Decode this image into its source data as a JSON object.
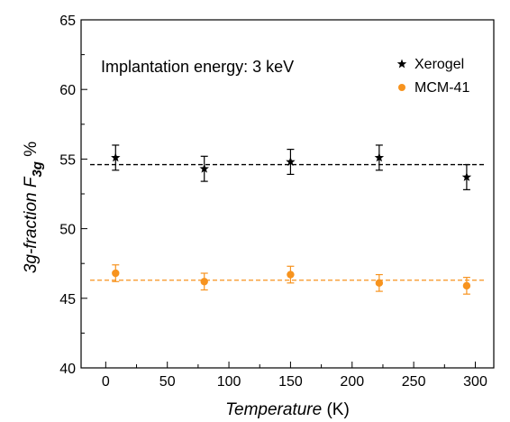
{
  "chart_data": {
    "type": "scatter",
    "title": "",
    "annotation": "Implantation energy: 3 keV",
    "xlabel": {
      "italic": "Temperature",
      "plain": " (K)"
    },
    "ylabel": {
      "prefix": "3g-fraction ",
      "symbol": "F",
      "subscript": "3g",
      "suffix": " %"
    },
    "xlim": [
      -20,
      315
    ],
    "ylim": [
      40,
      65
    ],
    "xticks": [
      0,
      50,
      100,
      150,
      200,
      250,
      300
    ],
    "yticks": [
      40,
      45,
      50,
      55,
      60,
      65
    ],
    "xtick_labels": [
      "0",
      "50",
      "100",
      "150",
      "200",
      "250",
      "300"
    ],
    "ytick_labels": [
      "40",
      "45",
      "50",
      "55",
      "60",
      "65"
    ],
    "grid": false,
    "legend_position": "top-right",
    "series": [
      {
        "name": "Xerogel",
        "marker": "star",
        "color": "#000000",
        "fit_level": 54.6,
        "x": [
          8,
          80,
          150,
          222,
          293
        ],
        "y": [
          55.1,
          54.3,
          54.8,
          55.1,
          53.7
        ],
        "yerr": [
          0.9,
          0.9,
          0.9,
          0.9,
          0.9
        ]
      },
      {
        "name": "MCM-41",
        "marker": "circle",
        "color": "#f7931e",
        "fit_level": 46.3,
        "x": [
          8,
          80,
          150,
          222,
          293
        ],
        "y": [
          46.8,
          46.2,
          46.7,
          46.1,
          45.9
        ],
        "yerr": [
          0.6,
          0.6,
          0.6,
          0.6,
          0.6
        ]
      }
    ]
  }
}
